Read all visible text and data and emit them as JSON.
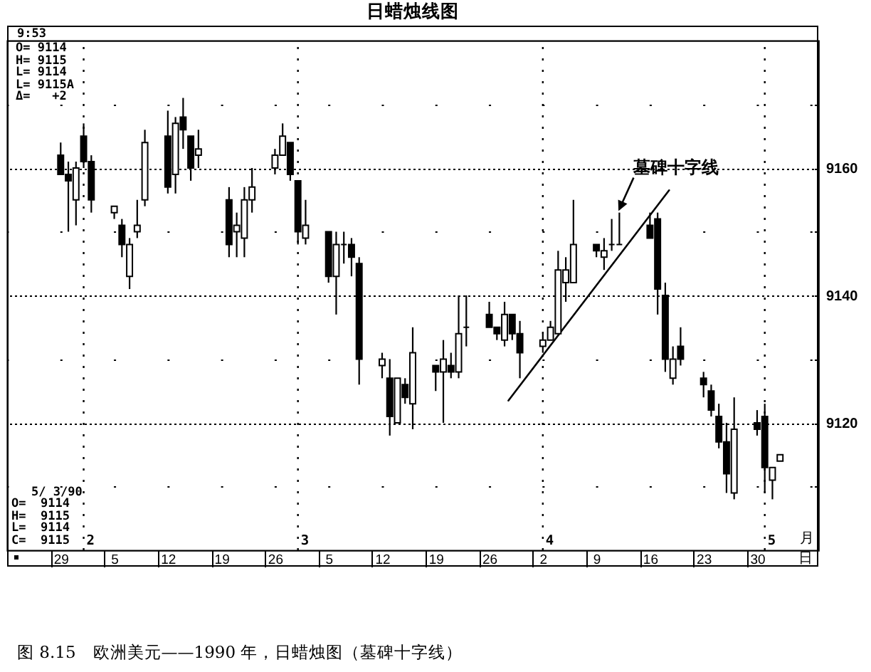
{
  "chart_data": {
    "type": "candlestick",
    "title": "日蜡烛线图",
    "xlabel": "日",
    "color": "#000000",
    "x": [
      "1990-01-29",
      "1990-01-30",
      "1990-01-31",
      "1990-02-01",
      "1990-02-02",
      "1990-02-05",
      "1990-02-06",
      "1990-02-07",
      "1990-02-08",
      "1990-02-09",
      "1990-02-12",
      "1990-02-13",
      "1990-02-14",
      "1990-02-15",
      "1990-02-16",
      "1990-02-20",
      "1990-02-21",
      "1990-02-22",
      "1990-02-23",
      "1990-02-26",
      "1990-02-27",
      "1990-02-28",
      "1990-03-01",
      "1990-03-02",
      "1990-03-05",
      "1990-03-06",
      "1990-03-07",
      "1990-03-08",
      "1990-03-09",
      "1990-03-12",
      "1990-03-13",
      "1990-03-14",
      "1990-03-15",
      "1990-03-16",
      "1990-03-19",
      "1990-03-20",
      "1990-03-21",
      "1990-03-22",
      "1990-03-23",
      "1990-03-26",
      "1990-03-27",
      "1990-03-28",
      "1990-03-29",
      "1990-03-30",
      "1990-04-02",
      "1990-04-03",
      "1990-04-04",
      "1990-04-05",
      "1990-04-06",
      "1990-04-09",
      "1990-04-10",
      "1990-04-11",
      "1990-04-12",
      "1990-04-16",
      "1990-04-17",
      "1990-04-18",
      "1990-04-19",
      "1990-04-20",
      "1990-04-23",
      "1990-04-24",
      "1990-04-25",
      "1990-04-26",
      "1990-04-27",
      "1990-04-30",
      "1990-05-01",
      "1990-05-02",
      "1990-05-03"
    ],
    "ohlc": [
      [
        9162,
        9164,
        9159,
        9159
      ],
      [
        9159,
        9161,
        9150,
        9158
      ],
      [
        9155,
        9161,
        9151,
        9160
      ],
      [
        9165,
        9167,
        9160,
        9161
      ],
      [
        9161,
        9162,
        9153,
        9155
      ],
      [
        9153,
        9154,
        9152,
        9154
      ],
      [
        9151,
        9152,
        9146,
        9148
      ],
      [
        9143,
        9149,
        9141,
        9148
      ],
      [
        9150,
        9155,
        9149,
        9151
      ],
      [
        9155,
        9166,
        9154,
        9164
      ],
      [
        9165,
        9169,
        9156,
        9157
      ],
      [
        9159,
        9168,
        9156,
        9167
      ],
      [
        9168,
        9171,
        9163,
        9166
      ],
      [
        9165,
        9165,
        9158,
        9160
      ],
      [
        9162,
        9166,
        9160,
        9163
      ],
      [
        9155,
        9157,
        9146,
        9148
      ],
      [
        9150,
        9153,
        9146,
        9151
      ],
      [
        9149,
        9157,
        9146,
        9155
      ],
      [
        9155,
        9160,
        9153,
        9157
      ],
      [
        9160,
        9163,
        9159,
        9162
      ],
      [
        9162,
        9167,
        9162,
        9165
      ],
      [
        9164,
        9164,
        9158,
        9159
      ],
      [
        9158,
        9158,
        9148,
        9150
      ],
      [
        9149,
        9155,
        9148,
        9151
      ],
      [
        9150,
        9150,
        9142,
        9143
      ],
      [
        9143,
        9150,
        9137,
        9148
      ],
      [
        9148,
        9150,
        9145,
        9148
      ],
      [
        9148,
        9149,
        9143,
        9146
      ],
      [
        9145,
        9146,
        9126,
        9130
      ],
      [
        9129,
        9131,
        9127,
        9130
      ],
      [
        9127,
        9130,
        9118,
        9121
      ],
      [
        9120,
        9127,
        9120,
        9127
      ],
      [
        9126,
        9127,
        9123,
        9124
      ],
      [
        9123,
        9135,
        9119,
        9131
      ],
      [
        9129,
        9129,
        9125,
        9128
      ],
      [
        9128,
        9133,
        9120,
        9130
      ],
      [
        9129,
        9131,
        9127,
        9128
      ],
      [
        9128,
        9140,
        9127,
        9134
      ],
      [
        9135,
        9140,
        9132,
        9135
      ],
      [
        9137,
        9139,
        9135,
        9135
      ],
      [
        9135,
        9135,
        9133,
        9134
      ],
      [
        9133,
        9139,
        9132,
        9137
      ],
      [
        9137,
        9137,
        9133,
        9134
      ],
      [
        9134,
        9136,
        9127,
        9131
      ],
      [
        9132,
        9134,
        9131,
        9133
      ],
      [
        9133,
        9136,
        9133,
        9135
      ],
      [
        9134,
        9147,
        9134,
        9144
      ],
      [
        9142,
        9146,
        9139,
        9144
      ],
      [
        9142,
        9155,
        9142,
        9148
      ],
      [
        9148,
        9148,
        9146,
        9147
      ],
      [
        9146,
        9149,
        9144,
        9147
      ],
      [
        9148,
        9152,
        9147,
        9148
      ],
      [
        9148,
        9153,
        9148,
        9148
      ],
      [
        9151,
        9153,
        9149,
        9149
      ],
      [
        9152,
        9153,
        9137,
        9141
      ],
      [
        9140,
        9142,
        9128,
        9130
      ],
      [
        9127,
        9132,
        9126,
        9130
      ],
      [
        9132,
        9135,
        9129,
        9130
      ],
      [
        9127,
        9128,
        9124,
        9126
      ],
      [
        9125,
        9126,
        9121,
        9122
      ],
      [
        9121,
        9123,
        9116,
        9117
      ],
      [
        9117,
        9120,
        9109,
        9112
      ],
      [
        9109,
        9124,
        9108,
        9119
      ],
      [
        9120,
        9122,
        9118,
        9119
      ],
      [
        9121,
        9123,
        9109,
        9113
      ],
      [
        9111,
        9113,
        9108,
        9113
      ],
      [
        9114,
        9115,
        9114,
        9115
      ]
    ],
    "series": [
      {
        "type": "line",
        "x": [
          "1990-03-28T12:00",
          "1990-04-18T12:00"
        ],
        "values": [
          9123.5,
          9156.5
        ],
        "color": "#000000"
      }
    ],
    "xlim": [
      "1990-01-22",
      "1990-05-08"
    ],
    "xticks": [
      {
        "value": "1990-01-29",
        "label": "29"
      },
      {
        "value": "1990-02-05",
        "label": "5"
      },
      {
        "value": "1990-02-12",
        "label": "12"
      },
      {
        "value": "1990-02-19",
        "label": "19"
      },
      {
        "value": "1990-02-26",
        "label": "26"
      },
      {
        "value": "1990-03-05",
        "label": "5"
      },
      {
        "value": "1990-03-12",
        "label": "12"
      },
      {
        "value": "1990-03-19",
        "label": "19"
      },
      {
        "value": "1990-03-26",
        "label": "26"
      },
      {
        "value": "1990-04-02",
        "label": "2"
      },
      {
        "value": "1990-04-09",
        "label": "9"
      },
      {
        "value": "1990-04-16",
        "label": "16"
      },
      {
        "value": "1990-04-23",
        "label": "23"
      },
      {
        "value": "1990-04-30",
        "label": "30"
      }
    ],
    "ylim": [
      9100,
      9180
    ],
    "yticks": [
      {
        "value": 9110,
        "label": null
      },
      9120,
      {
        "value": 9130,
        "label": null
      },
      9140,
      {
        "value": 9150,
        "label": null
      },
      9160,
      {
        "value": 9170,
        "label": null
      }
    ],
    "grid": true,
    "ref_lines": [
      {
        "axis": "x",
        "value": "1990-02-01",
        "label": "2",
        "line_style": "dotted"
      },
      {
        "axis": "x",
        "value": "1990-03-01",
        "label": "3",
        "line_style": "dotted"
      },
      {
        "axis": "x",
        "value": "1990-04-02",
        "label": "4",
        "line_style": "dotted"
      },
      {
        "axis": "x",
        "value": "1990-05-01",
        "label": "5",
        "line_style": "dotted"
      }
    ],
    "annotations": [
      "9:53",
      "O= 9114",
      "H= 9115",
      "L= 9114",
      "L= 9115A",
      "Δ=   +2",
      "5/ 3/90",
      "O=  9114",
      "H=  9115",
      "L=  9114",
      "C=  9115",
      "月",
      {
        "text": "墓碑十字线",
        "x": "1990-04-12",
        "y": 9153
      },
      "图 8.15　欧洲美元——1990 年，日蜡烛图（墓碑十字线）"
    ]
  }
}
